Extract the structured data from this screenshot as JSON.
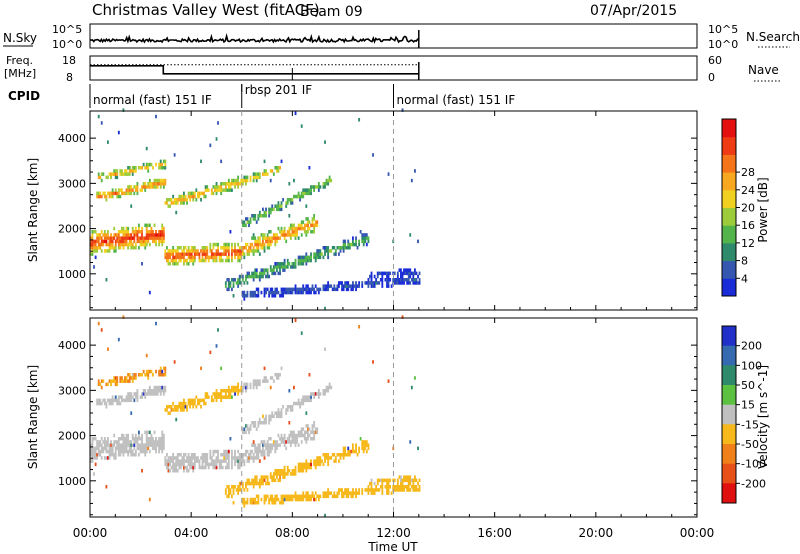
{
  "header": {
    "title": "Christmas Valley West (fitACF)",
    "beam": "Beam 09",
    "date": "07/Apr/2015"
  },
  "nsky": {
    "label": "N.Sky",
    "left_ticks": [
      "10^5",
      "10^0"
    ],
    "right_ticks": [
      "10^5",
      "10^0"
    ],
    "right_label": "N.Search"
  },
  "freq": {
    "label_top": "Freq.",
    "label_bottom": "[MHz]",
    "left_ticks": [
      "18",
      "8"
    ],
    "right_ticks": [
      "60",
      "0"
    ],
    "right_label": "Nave",
    "steps_mhz": [
      {
        "t0": 0.0,
        "t1": 2.9,
        "value": 13.9
      },
      {
        "t0": 2.9,
        "t1": 13.0,
        "value": 10.6
      }
    ],
    "nave_dotted": 38
  },
  "cpid": {
    "label": "CPID",
    "segments": [
      {
        "label": "normal (fast) 151 IF",
        "start": 0.0
      },
      {
        "label": "rbsp 201 IF",
        "start": 6.0
      },
      {
        "label": "normal (fast) 151 IF",
        "start": 12.0
      }
    ],
    "end": 13.0
  },
  "panels": {
    "ylabel": "Slant Range [km]",
    "yticks": [
      1000,
      2000,
      3000,
      4000
    ],
    "ylim": [
      200,
      4600
    ],
    "xlim": [
      0,
      24
    ],
    "xticks": [
      "00:00",
      "04:00",
      "08:00",
      "12:00",
      "16:00",
      "20:00",
      "00:00"
    ],
    "xlabel": "Time UT"
  },
  "power_scale": {
    "label": "Power [dB]",
    "ticks": [
      "4",
      "8",
      "12",
      "16",
      "20",
      "24",
      "28"
    ],
    "colors": [
      "#1a2bd8",
      "#3557b0",
      "#2f8a6c",
      "#52b44a",
      "#9ccc3c",
      "#f0d020",
      "#f8a81e",
      "#f5741a",
      "#ee3b14",
      "#e41010"
    ]
  },
  "velocity_scale": {
    "label": "Velocity [m s^-1]",
    "ticks": [
      "200",
      "100",
      "50",
      "15",
      "-15",
      "-50",
      "-100",
      "-200"
    ],
    "colors": [
      "#2030c8",
      "#3569b0",
      "#2f8a6c",
      "#5cc040",
      "#c0c0c0",
      "#f6b81a",
      "#f0801a",
      "#e8501a",
      "#e01010"
    ]
  },
  "chart_data": {
    "type": "heatmap",
    "title": "Christmas Valley West (fitACF)",
    "xlabel": "Time UT",
    "ylabel": "Slant Range [km]",
    "xlim": [
      0,
      24
    ],
    "ylim": [
      200,
      4600
    ],
    "bands": [
      {
        "name": "main_lower",
        "t0": 0.0,
        "t1": 2.9,
        "r0": 1650,
        "r1": 1850,
        "w": 520,
        "p": 26,
        "v": 0
      },
      {
        "name": "main_after_step",
        "t0": 2.9,
        "t1": 6.0,
        "r0": 1350,
        "r1": 1450,
        "w": 420,
        "p": 25,
        "v": 0
      },
      {
        "name": "main_rise",
        "t0": 6.0,
        "t1": 9.0,
        "r0": 1500,
        "r1": 2100,
        "w": 380,
        "p": 22,
        "v": 0
      },
      {
        "name": "upper_1",
        "t0": 0.2,
        "t1": 3.0,
        "r0": 2650,
        "r1": 3000,
        "w": 230,
        "p": 22,
        "v": 0
      },
      {
        "name": "upper_top",
        "t0": 0.3,
        "t1": 3.0,
        "r0": 3100,
        "r1": 3400,
        "w": 180,
        "p": 20,
        "v": -50
      },
      {
        "name": "upper_2",
        "t0": 2.9,
        "t1": 6.0,
        "r0": 2500,
        "r1": 3000,
        "w": 260,
        "p": 20,
        "v": -30
      },
      {
        "name": "upper_2b",
        "t0": 6.0,
        "t1": 7.5,
        "r0": 3000,
        "r1": 3300,
        "w": 180,
        "p": 19,
        "v": 0
      },
      {
        "name": "upper_3",
        "t0": 6.0,
        "t1": 9.5,
        "r0": 2050,
        "r1": 3050,
        "w": 200,
        "p": 14,
        "v": 0
      },
      {
        "name": "lower_long",
        "t0": 5.3,
        "t1": 11.0,
        "r0": 700,
        "r1": 1750,
        "w": 260,
        "p": 12,
        "v": -40
      },
      {
        "name": "near_range",
        "t0": 6.0,
        "t1": 13.0,
        "r0": 500,
        "r1": 850,
        "w": 200,
        "p": 6,
        "v": -30
      },
      {
        "name": "tail",
        "t0": 11.0,
        "t1": 13.0,
        "r0": 950,
        "r1": 1000,
        "w": 160,
        "p": 5,
        "v": -20
      }
    ]
  }
}
